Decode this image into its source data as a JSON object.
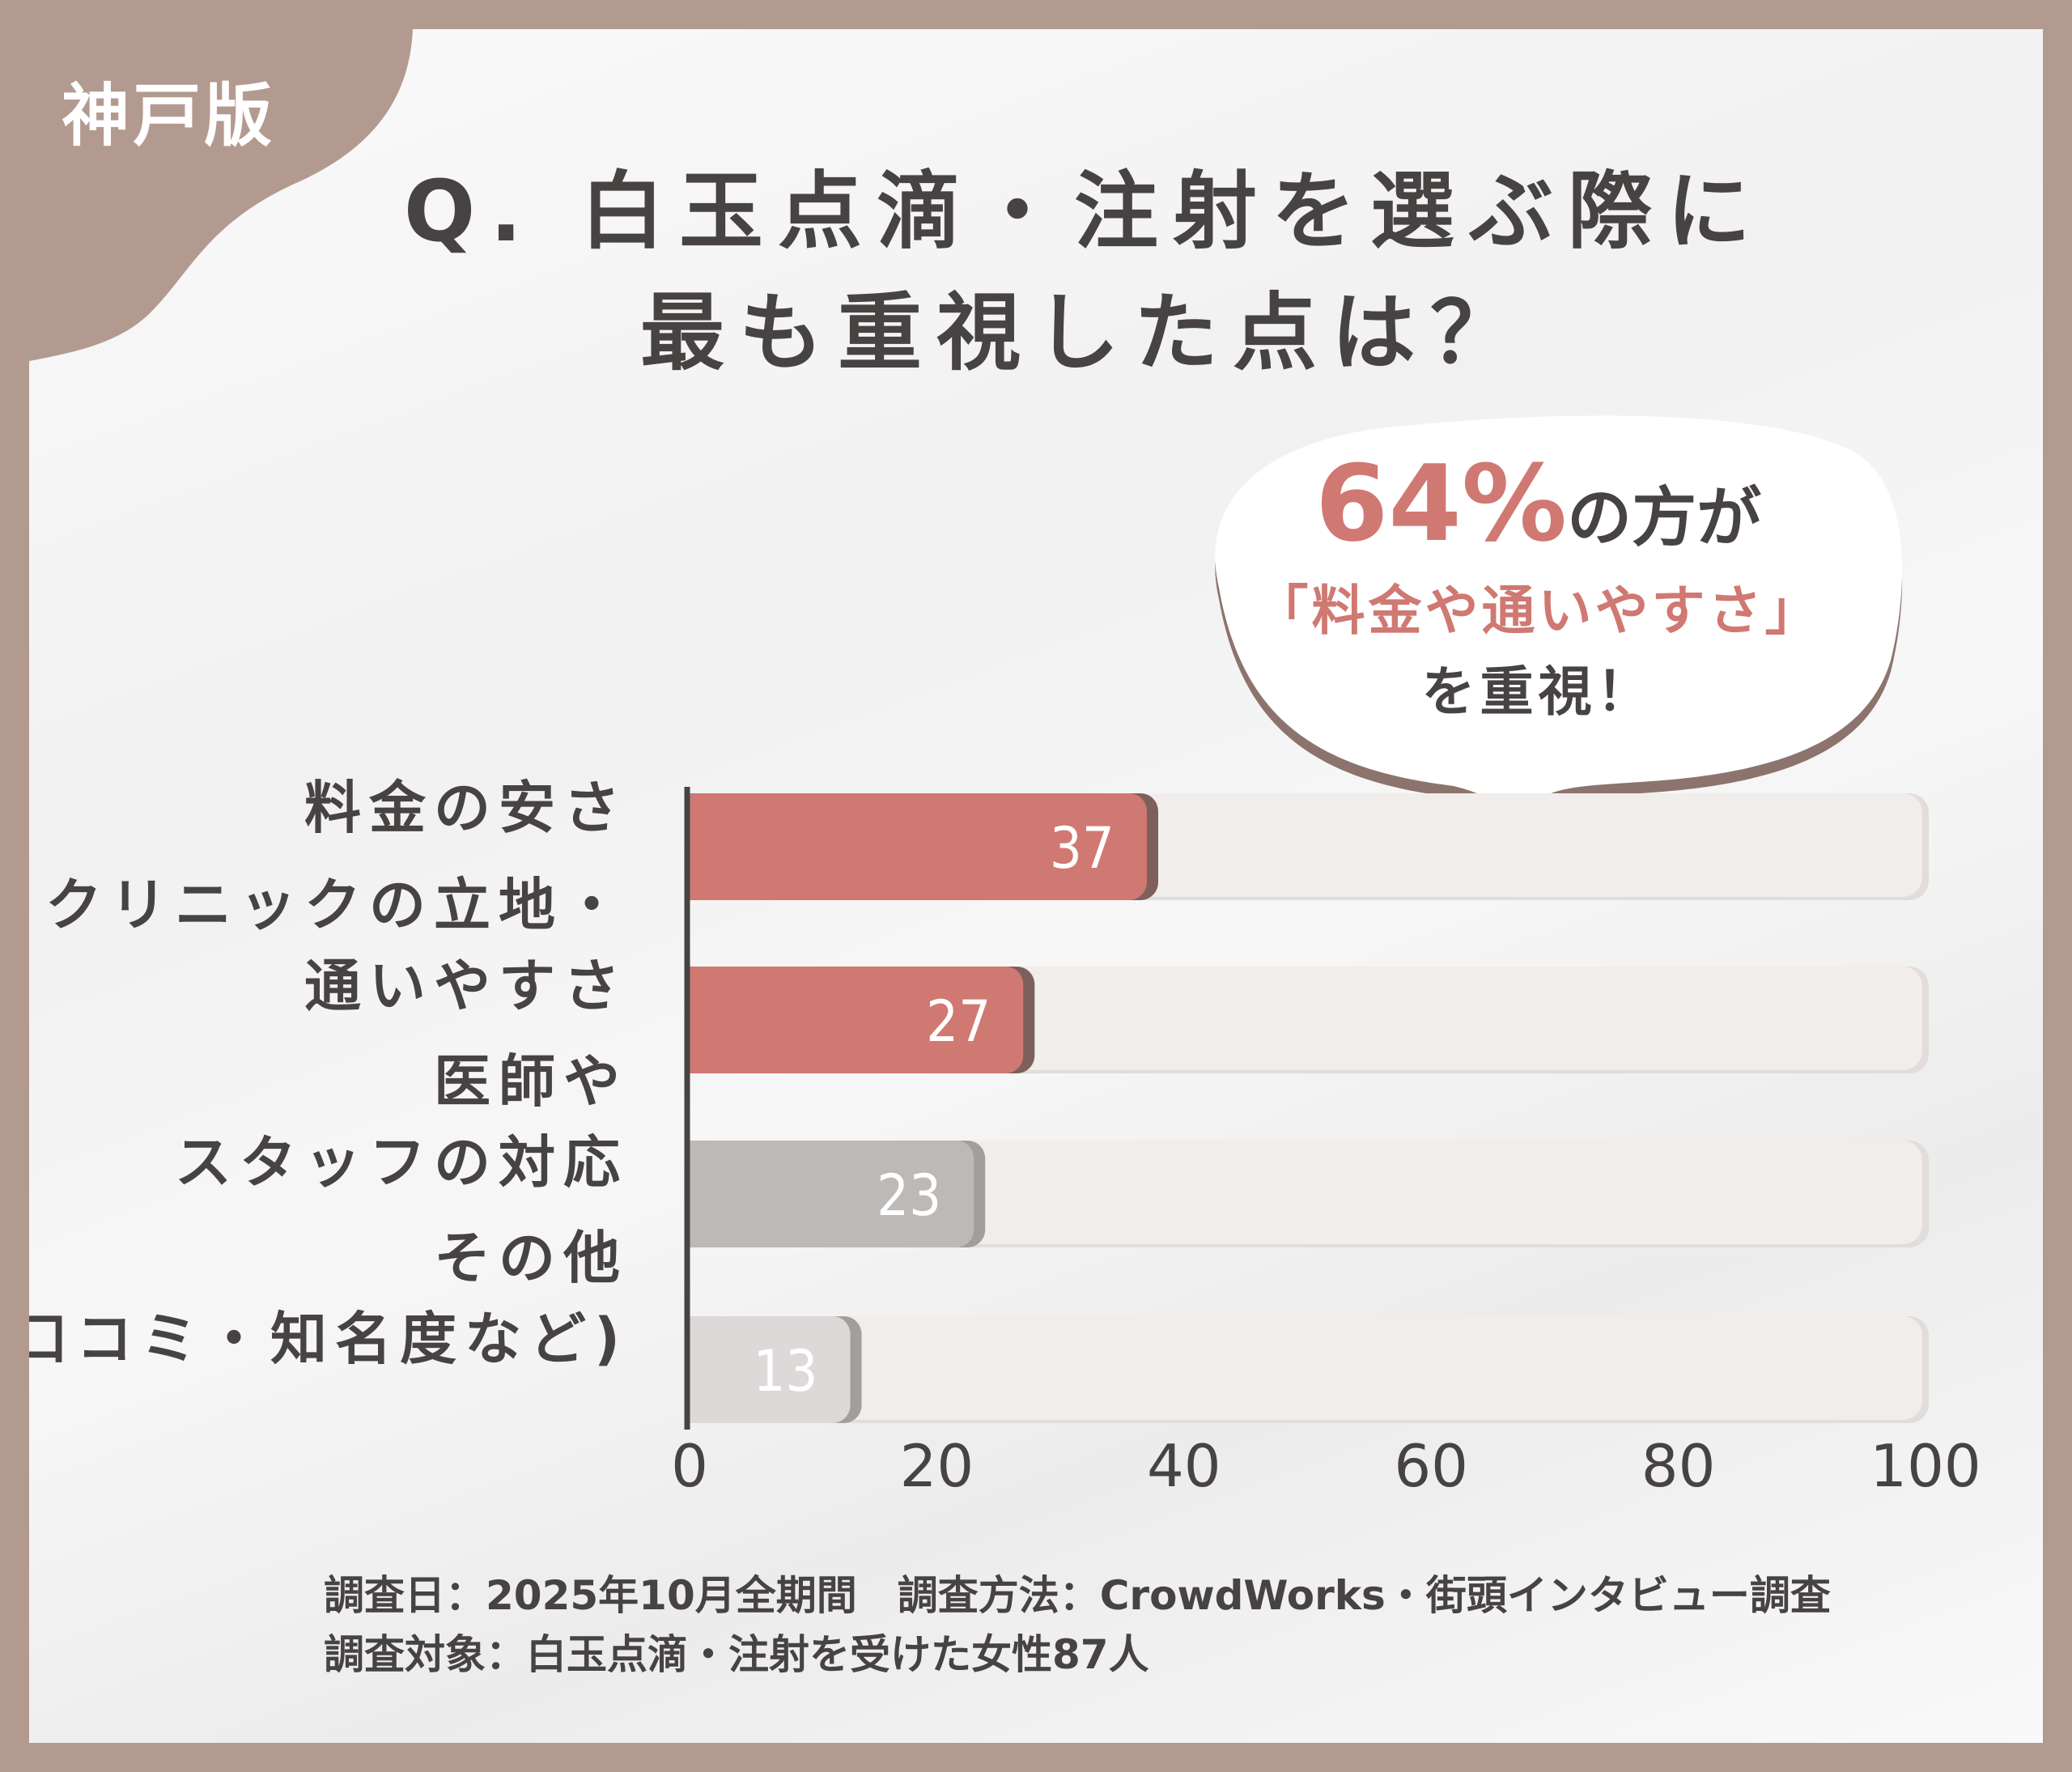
{
  "edition": "神戸版",
  "title": {
    "line1": "Q. 白玉点滴・注射を選ぶ際に",
    "line2": "最も重視した点は？"
  },
  "callout": {
    "percent": "64%",
    "line1_rest": "の方が",
    "line2": "「料金や通いやすさ」",
    "line3": "を重視！"
  },
  "footer": {
    "line1": "調査日：2025年10月全期間　調査方法：CrowdWorks・街頭インタビュー調査",
    "line2": "調査対象：白玉点滴・注射を受けた女性87人"
  },
  "chart_data": {
    "type": "bar",
    "orientation": "horizontal",
    "categories": [
      "料金の安さ",
      "クリニックの立地・通いやすさ",
      "医師やスタッフの対応",
      "その他（口コミ・知名度など）"
    ],
    "category_lines": [
      [
        "料金の安さ"
      ],
      [
        "クリニックの立地・",
        "通いやすさ"
      ],
      [
        "医師や",
        "スタッフの対応"
      ],
      [
        "その他",
        "(口コミ・知名度など)"
      ]
    ],
    "values": [
      37,
      27,
      23,
      13
    ],
    "bar_colors": [
      "#d07872",
      "#d07872",
      "#bdb9b7",
      "#dcd9d8"
    ],
    "track_color": "#f1edeb",
    "xlim": [
      0,
      100
    ],
    "xticks": [
      "0",
      "20",
      "40",
      "60",
      "80",
      "100"
    ],
    "grid": false,
    "title": "",
    "xlabel": "",
    "ylabel": ""
  }
}
